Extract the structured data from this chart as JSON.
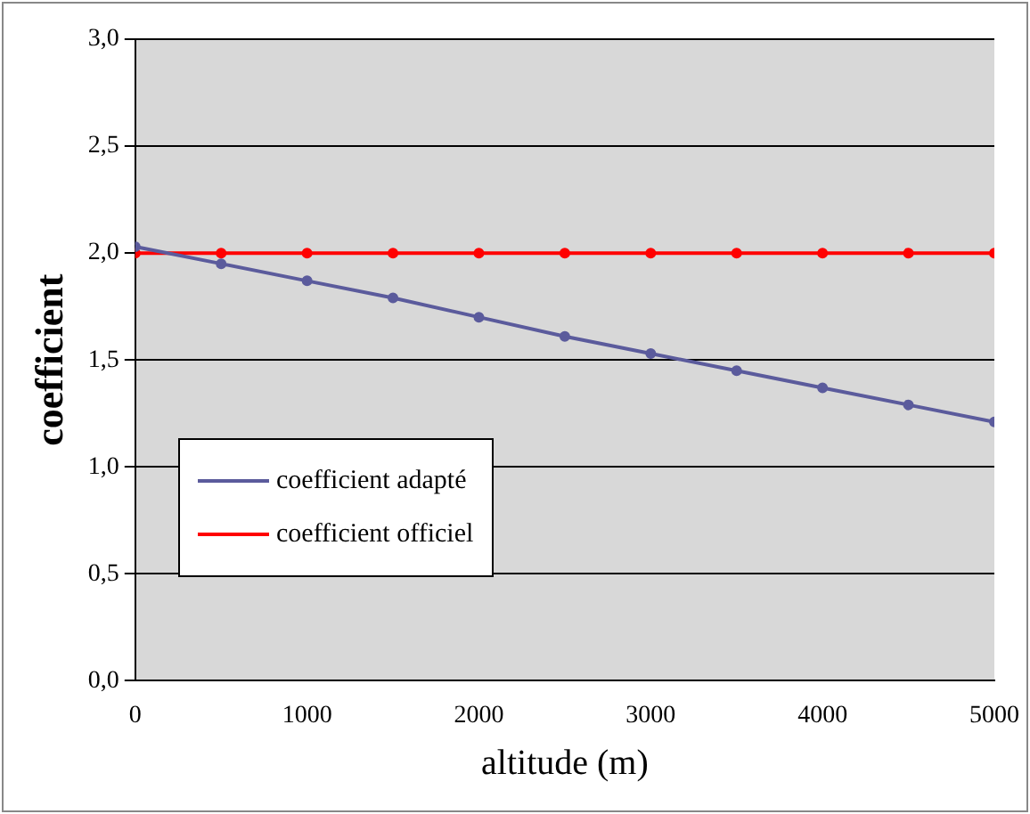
{
  "chart_data": {
    "type": "line",
    "xlabel": "altitude (m)",
    "ylabel": "coefficient",
    "x": [
      0,
      500,
      1000,
      1500,
      2000,
      2500,
      3000,
      3500,
      4000,
      4500,
      5000
    ],
    "series": [
      {
        "name": "coefficient adapté",
        "color": "#5b5b9c",
        "values": [
          2.03,
          1.95,
          1.87,
          1.79,
          1.7,
          1.61,
          1.53,
          1.45,
          1.37,
          1.29,
          1.21
        ]
      },
      {
        "name": "coefficient officiel",
        "color": "#ff0000",
        "values": [
          2.0,
          2.0,
          2.0,
          2.0,
          2.0,
          2.0,
          2.0,
          2.0,
          2.0,
          2.0,
          2.0
        ]
      }
    ],
    "xlim": [
      0,
      5000
    ],
    "xticks": [
      0,
      1000,
      2000,
      3000,
      4000,
      5000
    ],
    "ylim": [
      0,
      3
    ],
    "yticks": [
      {
        "value": 0,
        "label": "0,0"
      },
      {
        "value": 0.5,
        "label": "0,5"
      },
      {
        "value": 1,
        "label": "1,0"
      },
      {
        "value": 1.5,
        "label": "1,5"
      },
      {
        "value": 2,
        "label": "2,0"
      },
      {
        "value": 2.5,
        "label": "2,5"
      },
      {
        "value": 3,
        "label": "3,0"
      }
    ],
    "grid": "y",
    "legend": "bottom left",
    "marker": "circle",
    "line_style": "solid"
  }
}
